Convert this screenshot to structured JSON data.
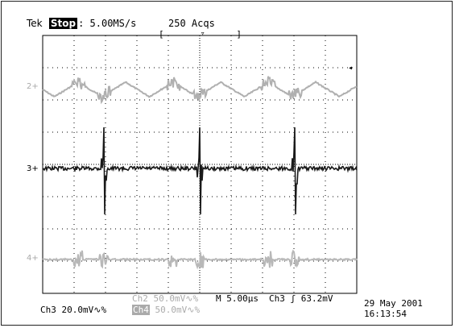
{
  "header": {
    "brand": "Tek",
    "run_state": "Stop",
    "sample_rate": ": 5.00MS/s",
    "acquisitions": "250 Acqs"
  },
  "channel_markers": {
    "ch2": "2+",
    "ch3": "3+",
    "ch4": "4+"
  },
  "scales": {
    "ch2": "Ch2  50.0mV∿%",
    "ch3": "Ch3  20.0mV∿%",
    "ch4_label": "Ch4",
    "ch4_value": " 50.0mV∿%"
  },
  "horizontal": {
    "timebase": "M 5.00µs",
    "trigger_source": "Ch3",
    "trigger_slope_icon": "rising-edge-icon",
    "trigger_level": "63.2mV"
  },
  "timestamp": {
    "date": "29 May 2001",
    "time": "16:13:54"
  },
  "colors": {
    "ch2": "#b0b0b0",
    "ch3": "#1a1a1a",
    "ch4": "#b8b8b8",
    "grid": "#000000"
  }
}
